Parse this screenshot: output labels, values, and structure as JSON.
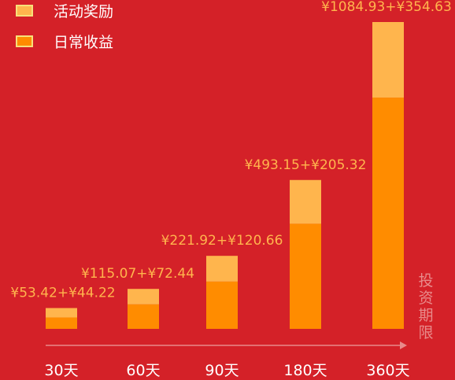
{
  "legend": [
    {
      "label": "活动奖励",
      "color": "#FFB54D"
    },
    {
      "label": "日常收益",
      "color": "#FF8C00"
    }
  ],
  "axis_label_chars": [
    "投",
    "资",
    "期",
    "限"
  ],
  "chart_data": {
    "type": "bar",
    "stacked": true,
    "categories": [
      "30天",
      "60天",
      "90天",
      "180天",
      "360天"
    ],
    "series": [
      {
        "name": "日常收益",
        "color": "#FF8C00",
        "values": [
          53.42,
          115.07,
          221.92,
          493.15,
          1084.93
        ]
      },
      {
        "name": "活动奖励",
        "color": "#FFB54D",
        "values": [
          44.22,
          72.44,
          120.66,
          205.32,
          354.63
        ]
      }
    ],
    "data_labels": [
      "¥53.42+¥44.22",
      "¥115.07+¥72.44",
      "¥221.92+¥120.66",
      "¥493.15+¥205.32",
      "¥1084.93+¥354.63"
    ],
    "xlabel": "投资期限",
    "ylabel": "",
    "legend_position": "top-left",
    "grid": false,
    "colors": {
      "background": "#D42128",
      "label": "#FFB54D",
      "tick": "#FFFFFF",
      "axis": "#E88A8A"
    }
  }
}
